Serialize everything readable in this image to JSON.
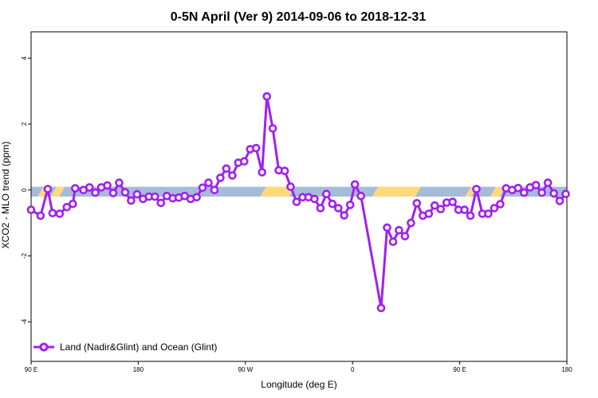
{
  "chart_data": {
    "type": "line",
    "title": "0-5N April (Ver 9)   2014-09-06 to 2018-12-31",
    "xlabel": "Longitude (deg E)",
    "ylabel": "XCO2 - MLO trend (ppm)",
    "x_tick_labels": [
      {
        "x": 90,
        "label": "90 E"
      },
      {
        "x": 180,
        "label": "180"
      },
      {
        "x": 270,
        "label": "90 W"
      },
      {
        "x": 360,
        "label": "0"
      },
      {
        "x": 450,
        "label": "90 E"
      },
      {
        "x": 540,
        "label": "180"
      }
    ],
    "y_ticks": [
      {
        "y": -4,
        "label": "-4"
      },
      {
        "y": -2,
        "label": "-2"
      },
      {
        "y": 0,
        "label": "0"
      },
      {
        "y": 2,
        "label": "2"
      },
      {
        "y": 4,
        "label": "4"
      }
    ],
    "xlim": [
      90,
      540
    ],
    "ylim": [
      -5.2,
      4.8
    ],
    "grid": false,
    "legend_position": "bottom-left",
    "series": [
      {
        "name": "Land (Nadir&Glint) and Ocean (Glint)",
        "color": "#a020f0",
        "points": [
          [
            90,
            -0.6
          ],
          [
            98,
            -0.78
          ],
          [
            104,
            0.03
          ],
          [
            108,
            -0.7
          ],
          [
            114,
            -0.72
          ],
          [
            120,
            -0.52
          ],
          [
            125,
            -0.42
          ],
          [
            127,
            0.05
          ],
          [
            134,
            0.0
          ],
          [
            139,
            0.08
          ],
          [
            144,
            -0.08
          ],
          [
            149,
            0.08
          ],
          [
            154,
            0.14
          ],
          [
            159,
            -0.09
          ],
          [
            164,
            0.22
          ],
          [
            169,
            -0.07
          ],
          [
            174,
            -0.32
          ],
          [
            179,
            -0.13
          ],
          [
            184,
            -0.27
          ],
          [
            189,
            -0.2
          ],
          [
            194,
            -0.2
          ],
          [
            199,
            -0.39
          ],
          [
            204,
            -0.18
          ],
          [
            209,
            -0.25
          ],
          [
            214,
            -0.23
          ],
          [
            219,
            -0.18
          ],
          [
            224,
            -0.27
          ],
          [
            229,
            -0.22
          ],
          [
            234,
            0.07
          ],
          [
            239,
            0.22
          ],
          [
            244,
            0.0
          ],
          [
            249,
            0.37
          ],
          [
            254,
            0.65
          ],
          [
            259,
            0.44
          ],
          [
            264,
            0.83
          ],
          [
            269,
            0.87
          ],
          [
            274,
            1.24
          ],
          [
            279,
            1.27
          ],
          [
            284,
            0.54
          ],
          [
            288,
            2.84
          ],
          [
            293,
            1.87
          ],
          [
            298,
            0.6
          ],
          [
            303,
            0.58
          ],
          [
            308,
            0.1
          ],
          [
            313,
            -0.36
          ],
          [
            318,
            -0.22
          ],
          [
            323,
            -0.22
          ],
          [
            328,
            -0.27
          ],
          [
            333,
            -0.55
          ],
          [
            338,
            -0.12
          ],
          [
            343,
            -0.42
          ],
          [
            348,
            -0.55
          ],
          [
            353,
            -0.77
          ],
          [
            358,
            -0.45
          ],
          [
            362,
            0.17
          ],
          [
            367,
            -0.18
          ],
          [
            384,
            -3.58
          ],
          [
            389,
            -1.14
          ],
          [
            394,
            -1.57
          ],
          [
            399,
            -1.22
          ],
          [
            404,
            -1.4
          ],
          [
            409,
            -1.0
          ],
          [
            414,
            -0.4
          ],
          [
            419,
            -0.78
          ],
          [
            424,
            -0.72
          ],
          [
            429,
            -0.47
          ],
          [
            434,
            -0.58
          ],
          [
            439,
            -0.38
          ],
          [
            444,
            -0.36
          ],
          [
            449,
            -0.6
          ],
          [
            454,
            -0.6
          ],
          [
            459,
            -0.78
          ],
          [
            464,
            0.03
          ],
          [
            469,
            -0.72
          ],
          [
            474,
            -0.72
          ],
          [
            479,
            -0.55
          ],
          [
            484,
            -0.43
          ],
          [
            489,
            0.05
          ],
          [
            494,
            0.0
          ],
          [
            499,
            0.06
          ],
          [
            504,
            -0.08
          ],
          [
            509,
            0.08
          ],
          [
            514,
            0.15
          ],
          [
            519,
            -0.08
          ],
          [
            524,
            0.22
          ],
          [
            529,
            -0.1
          ],
          [
            534,
            -0.33
          ],
          [
            539,
            -0.12
          ]
        ]
      }
    ],
    "surface_band": {
      "land_color": "#a5bcd9",
      "ocean_color": "#ffd97a",
      "segments": [
        {
          "type": "land",
          "x0": 90,
          "x1": 98
        },
        {
          "type": "ocean",
          "x0": 98,
          "x1": 103
        },
        {
          "type": "land",
          "x0": 103,
          "x1": 109
        },
        {
          "type": "ocean",
          "x0": 109,
          "x1": 116
        },
        {
          "type": "land",
          "x0": 116,
          "x1": 285
        },
        {
          "type": "ocean",
          "x0": 285,
          "x1": 309
        },
        {
          "type": "land",
          "x0": 309,
          "x1": 379
        },
        {
          "type": "ocean",
          "x0": 379,
          "x1": 415
        },
        {
          "type": "land",
          "x0": 415,
          "x1": 457
        },
        {
          "type": "ocean",
          "x0": 457,
          "x1": 462
        },
        {
          "type": "land",
          "x0": 462,
          "x1": 478
        },
        {
          "type": "ocean",
          "x0": 478,
          "x1": 486
        },
        {
          "type": "land",
          "x0": 486,
          "x1": 540
        }
      ]
    }
  }
}
